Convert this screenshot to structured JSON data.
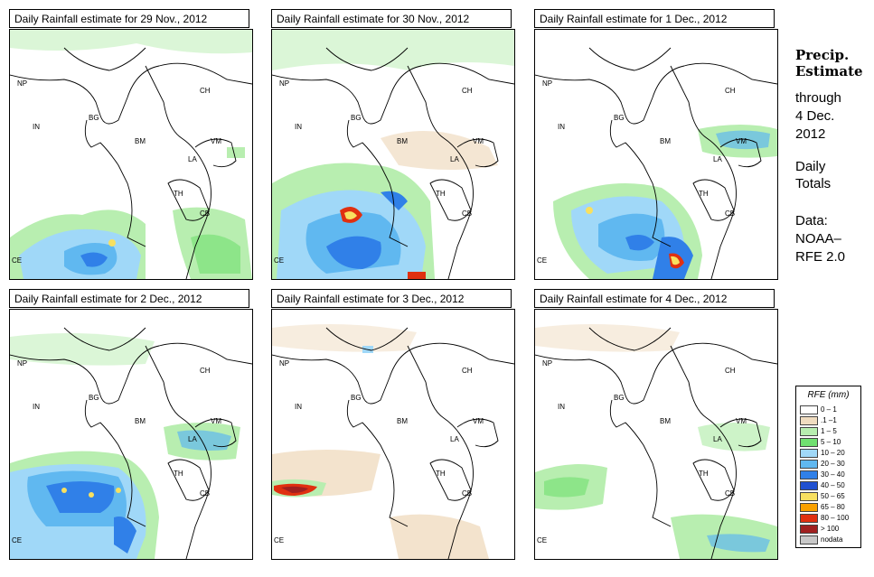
{
  "panels": [
    {
      "title": "Daily Rainfall estimate for  29 Nov., 2012"
    },
    {
      "title": "Daily Rainfall estimate for  30 Nov., 2012"
    },
    {
      "title": "Daily Rainfall estimate for  1 Dec., 2012"
    },
    {
      "title": "Daily Rainfall estimate for  2 Dec., 2012"
    },
    {
      "title": "Daily Rainfall estimate for  3 Dec., 2012"
    },
    {
      "title": "Daily Rainfall estimate for  4 Dec., 2012"
    }
  ],
  "countries": {
    "np": "NP",
    "ch": "CH",
    "in": "IN",
    "bg": "BG",
    "bm": "BM",
    "vm": "VM",
    "la": "LA",
    "th": "TH",
    "cb": "CB",
    "ce": "CE"
  },
  "sidebar": {
    "line1": "Precip.",
    "line2": "Estimate",
    "line3": "through",
    "line4": "4 Dec.",
    "line5": "2012",
    "line6": "Daily",
    "line7": "Totals",
    "line8": "Data:",
    "line9": "NOAA–",
    "line10": "RFE 2.0"
  },
  "legend": {
    "title": "RFE (mm)",
    "items": [
      {
        "label": "0 – 1",
        "color": "#ffffff"
      },
      {
        "label": ".1 –1",
        "color": "#f0dcc0"
      },
      {
        "label": "1 – 5",
        "color": "#b8eeb0"
      },
      {
        "label": "5 – 10",
        "color": "#70e070"
      },
      {
        "label": "10 – 20",
        "color": "#a0d8f8"
      },
      {
        "label": "20 – 30",
        "color": "#60b8f0"
      },
      {
        "label": "30 – 40",
        "color": "#3080e8"
      },
      {
        "label": "40 – 50",
        "color": "#2050d0"
      },
      {
        "label": "50 – 65",
        "color": "#f8e060"
      },
      {
        "label": "65 – 80",
        "color": "#f8a000"
      },
      {
        "label": "80 – 100",
        "color": "#e03010"
      },
      {
        "label": "> 100",
        "color": "#a02020"
      },
      {
        "label": "nodata",
        "color": "#c8c8c8"
      }
    ]
  }
}
